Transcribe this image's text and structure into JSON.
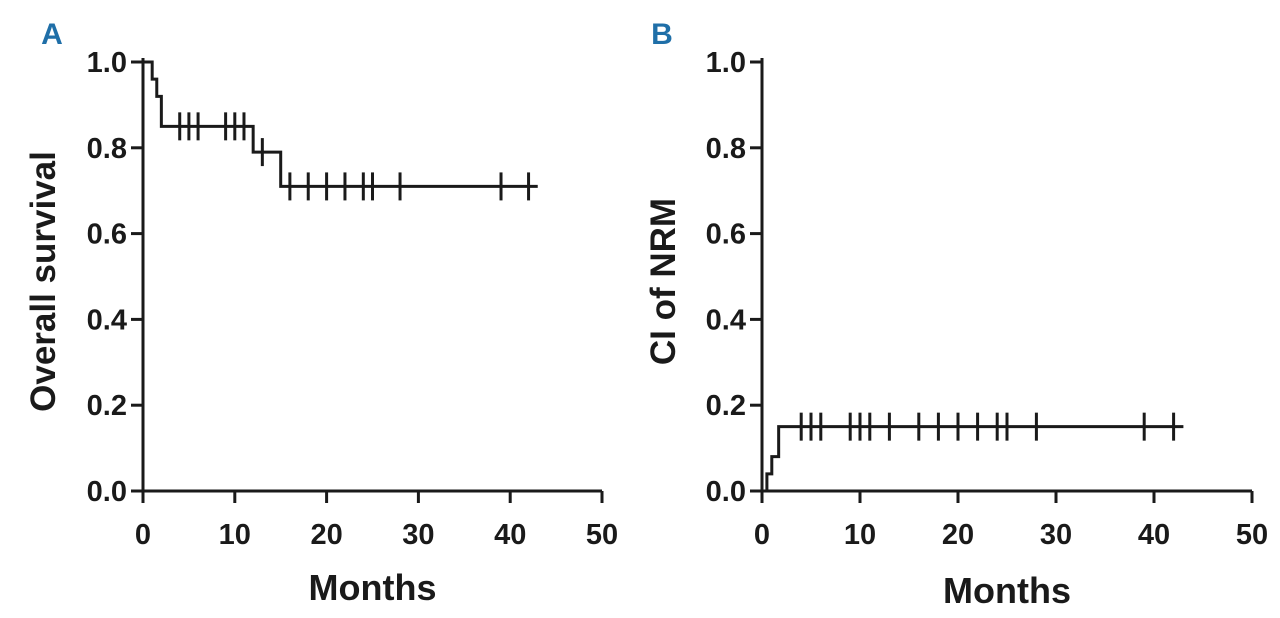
{
  "chart_data": [
    {
      "panel_label": "A",
      "type": "line",
      "step": true,
      "xlabel": "Months",
      "ylabel": "Overall survival",
      "xlim": [
        0,
        50
      ],
      "ylim": [
        0,
        1
      ],
      "x_ticks": [
        "0",
        "10",
        "20",
        "30",
        "40",
        "50"
      ],
      "y_ticks": [
        "0.0",
        "0.2",
        "0.4",
        "0.6",
        "0.8",
        "1.0"
      ],
      "grid": false,
      "series": [
        {
          "steps": [
            [
              0,
              1.0
            ],
            [
              1,
              0.96
            ],
            [
              1.5,
              0.92
            ],
            [
              2,
              0.85
            ],
            [
              12,
              0.79
            ],
            [
              15,
              0.71
            ],
            [
              43,
              0.71
            ]
          ],
          "censored": [
            [
              4,
              0.85
            ],
            [
              5,
              0.85
            ],
            [
              6,
              0.85
            ],
            [
              9,
              0.85
            ],
            [
              10,
              0.85
            ],
            [
              11,
              0.85
            ],
            [
              13,
              0.79
            ],
            [
              16,
              0.71
            ],
            [
              18,
              0.71
            ],
            [
              20,
              0.71
            ],
            [
              22,
              0.71
            ],
            [
              24,
              0.71
            ],
            [
              25,
              0.71
            ],
            [
              28,
              0.71
            ],
            [
              39,
              0.71
            ],
            [
              42,
              0.71
            ]
          ]
        }
      ]
    },
    {
      "panel_label": "B",
      "type": "line",
      "step": true,
      "xlabel": "Months",
      "ylabel": "CI of NRM",
      "xlim": [
        0,
        50
      ],
      "ylim": [
        0,
        1
      ],
      "x_ticks": [
        "0",
        "10",
        "20",
        "30",
        "40",
        "50"
      ],
      "y_ticks": [
        "0.0",
        "0.2",
        "0.4",
        "0.6",
        "0.8",
        "1.0"
      ],
      "grid": false,
      "series": [
        {
          "steps": [
            [
              0,
              0.0
            ],
            [
              0.5,
              0.04
            ],
            [
              1,
              0.08
            ],
            [
              1.7,
              0.15
            ],
            [
              43,
              0.15
            ]
          ],
          "censored": [
            [
              4,
              0.15
            ],
            [
              5,
              0.15
            ],
            [
              6,
              0.15
            ],
            [
              9,
              0.15
            ],
            [
              10,
              0.15
            ],
            [
              11,
              0.15
            ],
            [
              13,
              0.15
            ],
            [
              16,
              0.15
            ],
            [
              18,
              0.15
            ],
            [
              20,
              0.15
            ],
            [
              22,
              0.15
            ],
            [
              24,
              0.15
            ],
            [
              25,
              0.15
            ],
            [
              28,
              0.15
            ],
            [
              39,
              0.15
            ],
            [
              42,
              0.15
            ]
          ]
        }
      ]
    }
  ],
  "colors": {
    "ink": "#1a1a1a",
    "panel_label": "#1f6fa8"
  }
}
